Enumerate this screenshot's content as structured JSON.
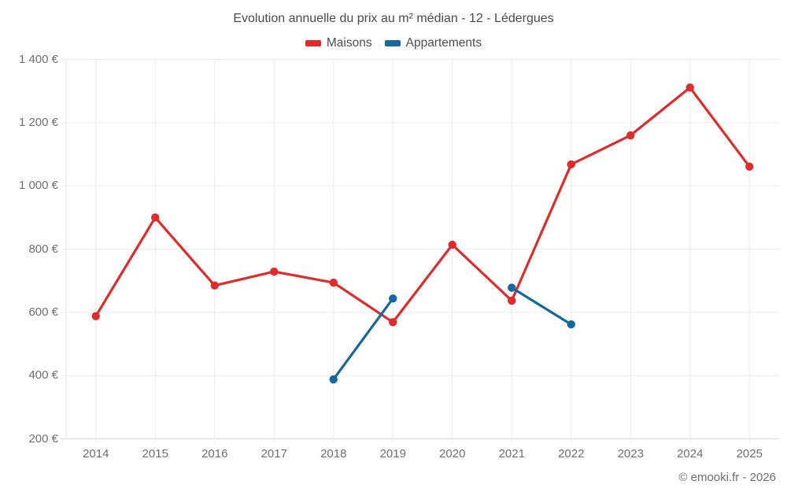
{
  "title": "Evolution annuelle du prix au m² médian - 12 - Lédergues",
  "footer_credit": "© emooki.fr - 2026",
  "legend": {
    "items": [
      {
        "label": "Maisons",
        "color": "#e02b2b"
      },
      {
        "label": "Appartements",
        "color": "#1569a0"
      }
    ]
  },
  "colors": {
    "grid": "#ececec",
    "axis_line": "#d9d9d9",
    "plot_border": "#e5e5e5",
    "tick_text": "#6f6f6f",
    "title_text": "#4b4b4b"
  },
  "chart_data": {
    "type": "line",
    "title": "Evolution annuelle du prix au m² médian - 12 - Lédergues",
    "categories": [
      "2014",
      "2015",
      "2016",
      "2017",
      "2018",
      "2019",
      "2020",
      "2021",
      "2022",
      "2023",
      "2024",
      "2025"
    ],
    "series": [
      {
        "name": "Maisons",
        "color": "#e02b2b",
        "values": [
          588,
          900,
          685,
          729,
          694,
          569,
          814,
          637,
          1068,
          1160,
          1311,
          1061
        ]
      },
      {
        "name": "Appartements",
        "color": "#1569a0",
        "values": [
          null,
          null,
          null,
          null,
          388,
          644,
          null,
          678,
          562,
          null,
          null,
          null
        ]
      }
    ],
    "xlabel": "",
    "ylabel": "",
    "ylim": [
      200,
      1400
    ],
    "y_ticks": [
      {
        "value": 1400,
        "label": "1 400 €"
      },
      {
        "value": 1200,
        "label": "1 200 €"
      },
      {
        "value": 1000,
        "label": "1 000 €"
      },
      {
        "value": 800,
        "label": "800 €"
      },
      {
        "value": 600,
        "label": "600 €"
      },
      {
        "value": 400,
        "label": "400 €"
      },
      {
        "value": 200,
        "label": "200 €"
      }
    ],
    "grid": true,
    "legend_position": "top",
    "marker": "circle",
    "currency_suffix": " €"
  }
}
